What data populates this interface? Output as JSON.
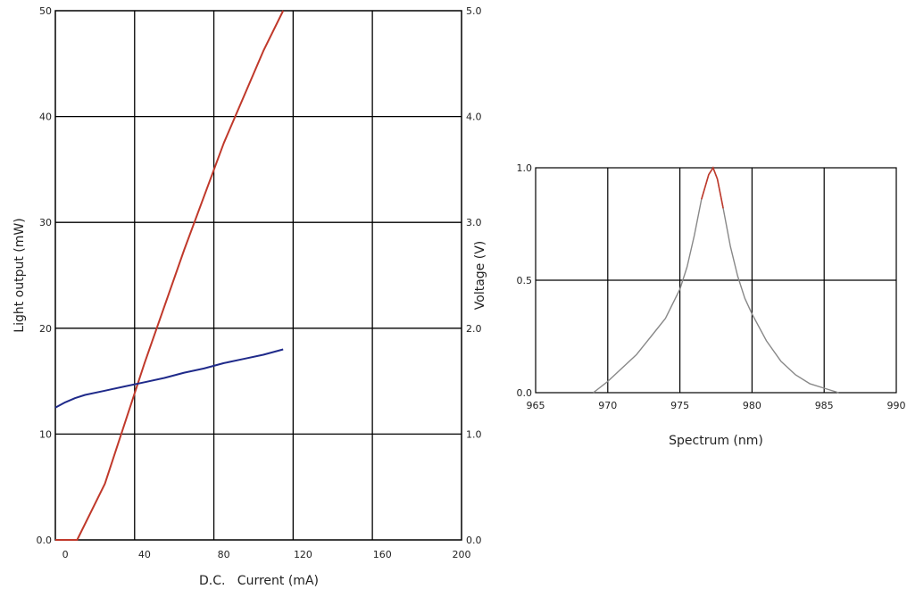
{
  "chart_data": [
    {
      "type": "line",
      "xlabel": "D.C.   Current (mA)",
      "ylabel": "Light output (mW)",
      "y2label": "Voltage (V)",
      "xlim": [
        -5,
        200
      ],
      "ylim": [
        0,
        50
      ],
      "y2lim": [
        0,
        5
      ],
      "x_ticks": [
        "0",
        "40",
        "80",
        "120",
        "160",
        "200"
      ],
      "x_tick_values": [
        0,
        40,
        80,
        120,
        160,
        200
      ],
      "y_ticks": [
        "0.0",
        "10",
        "20",
        "30",
        "40",
        "50"
      ],
      "y_tick_values": [
        0,
        10,
        20,
        30,
        40,
        50
      ],
      "y2_ticks": [
        "0.0",
        "1.0",
        "2.0",
        "3.0",
        "4.0",
        "5.0"
      ],
      "y2_tick_values": [
        0,
        1,
        2,
        3,
        4,
        5
      ],
      "x_gridlines": [
        35,
        75,
        115,
        155
      ],
      "y_gridlines": [
        10,
        20,
        30,
        40
      ],
      "grid": true,
      "series": [
        {
          "axis": "left",
          "color": "#c0392b",
          "x": [
            -5,
            0,
            6,
            20,
            40,
            60,
            80,
            100,
            110
          ],
          "y": [
            0,
            0,
            0,
            5.3,
            16.7,
            27.4,
            37.5,
            46.2,
            50
          ]
        },
        {
          "axis": "right",
          "color": "#1f2a8a",
          "x": [
            -5,
            0,
            5,
            10,
            20,
            30,
            40,
            50,
            60,
            70,
            80,
            90,
            100,
            110
          ],
          "y": [
            1.25,
            1.3,
            1.34,
            1.37,
            1.41,
            1.45,
            1.49,
            1.53,
            1.58,
            1.62,
            1.67,
            1.71,
            1.75,
            1.8
          ]
        }
      ]
    },
    {
      "type": "line",
      "xlabel": "Spectrum (nm)",
      "ylabel": "",
      "xlim": [
        965,
        990
      ],
      "ylim": [
        0,
        1
      ],
      "x_ticks": [
        "965",
        "970",
        "975",
        "980",
        "985",
        "990"
      ],
      "x_tick_values": [
        965,
        970,
        975,
        980,
        985,
        990
      ],
      "y_ticks": [
        "0.0",
        "0.5",
        "1.0"
      ],
      "y_tick_values": [
        0,
        0.5,
        1
      ],
      "grid": true,
      "series": [
        {
          "color": "#888888",
          "peak_color": "#c0392b",
          "x": [
            969,
            970,
            971,
            972,
            973,
            974,
            975,
            975.5,
            976,
            976.5,
            977,
            977.3,
            977.6,
            978,
            978.5,
            979,
            979.5,
            980,
            981,
            982,
            983,
            984,
            985,
            986
          ],
          "y": [
            0.0,
            0.05,
            0.11,
            0.17,
            0.25,
            0.33,
            0.46,
            0.56,
            0.7,
            0.86,
            0.97,
            1.0,
            0.95,
            0.82,
            0.65,
            0.52,
            0.42,
            0.35,
            0.23,
            0.14,
            0.08,
            0.04,
            0.02,
            0.0
          ]
        }
      ]
    }
  ]
}
